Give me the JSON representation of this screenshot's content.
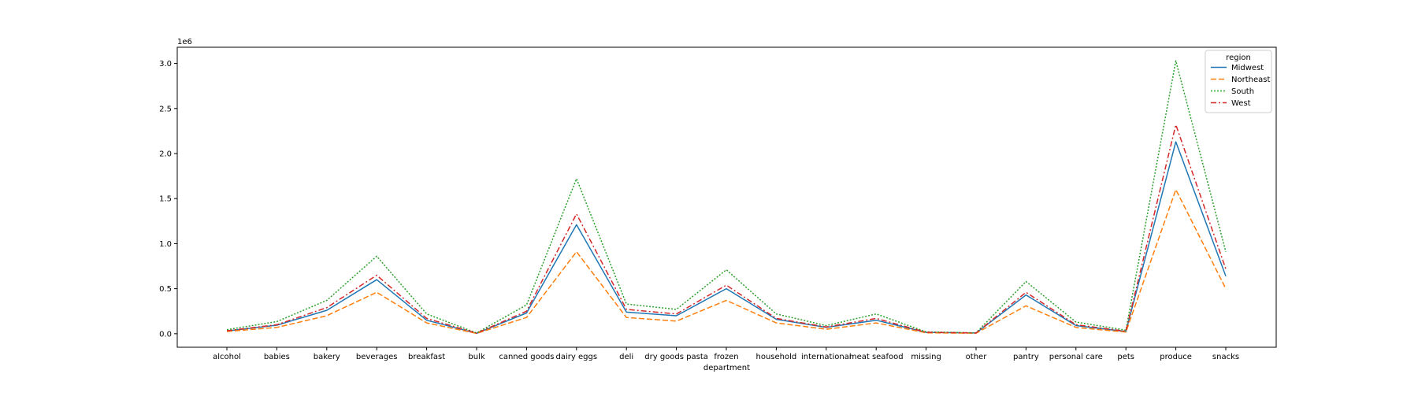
{
  "chart_data": {
    "type": "line",
    "title": "",
    "xlabel": "department",
    "ylabel": "",
    "y_offset_label": "1e6",
    "y_scale": 1000000,
    "ylim": [
      -150000,
      3180000
    ],
    "y_ticks": [
      0,
      500000,
      1000000,
      1500000,
      2000000,
      2500000,
      3000000
    ],
    "y_tick_labels": [
      "0.0",
      "0.5",
      "1.0",
      "1.5",
      "2.0",
      "2.5",
      "3.0"
    ],
    "grid": false,
    "legend": {
      "title": "region",
      "placement": "top-right"
    },
    "categories": [
      "alcohol",
      "babies",
      "bakery",
      "beverages",
      "breakfast",
      "bulk",
      "canned goods",
      "dairy eggs",
      "deli",
      "dry goods pasta",
      "frozen",
      "household",
      "international",
      "meat seafood",
      "missing",
      "other",
      "pantry",
      "personal care",
      "pets",
      "produce",
      "snacks"
    ],
    "series": [
      {
        "name": "Midwest",
        "color": "#1f77b4",
        "dash": "solid",
        "values": [
          30000,
          95000,
          260000,
          600000,
          150000,
          5000,
          230000,
          1210000,
          240000,
          200000,
          500000,
          160000,
          70000,
          150000,
          15000,
          8000,
          430000,
          90000,
          25000,
          2130000,
          640000
        ]
      },
      {
        "name": "Northeast",
        "color": "#ff7f0e",
        "dash": "dashed",
        "values": [
          25000,
          70000,
          200000,
          460000,
          120000,
          4000,
          180000,
          910000,
          180000,
          140000,
          370000,
          120000,
          50000,
          120000,
          10000,
          6000,
          310000,
          70000,
          18000,
          1600000,
          500000
        ]
      },
      {
        "name": "South",
        "color": "#2ca02c",
        "dash": "dotted",
        "values": [
          45000,
          135000,
          370000,
          860000,
          220000,
          8000,
          320000,
          1720000,
          330000,
          270000,
          710000,
          220000,
          90000,
          220000,
          20000,
          10000,
          580000,
          130000,
          40000,
          3030000,
          910000
        ]
      },
      {
        "name": "West",
        "color": "#d62728",
        "dash": "dashdot",
        "values": [
          33000,
          100000,
          290000,
          650000,
          170000,
          6000,
          250000,
          1330000,
          270000,
          220000,
          540000,
          170000,
          75000,
          170000,
          16000,
          8000,
          460000,
          100000,
          27000,
          2320000,
          720000
        ]
      }
    ]
  }
}
